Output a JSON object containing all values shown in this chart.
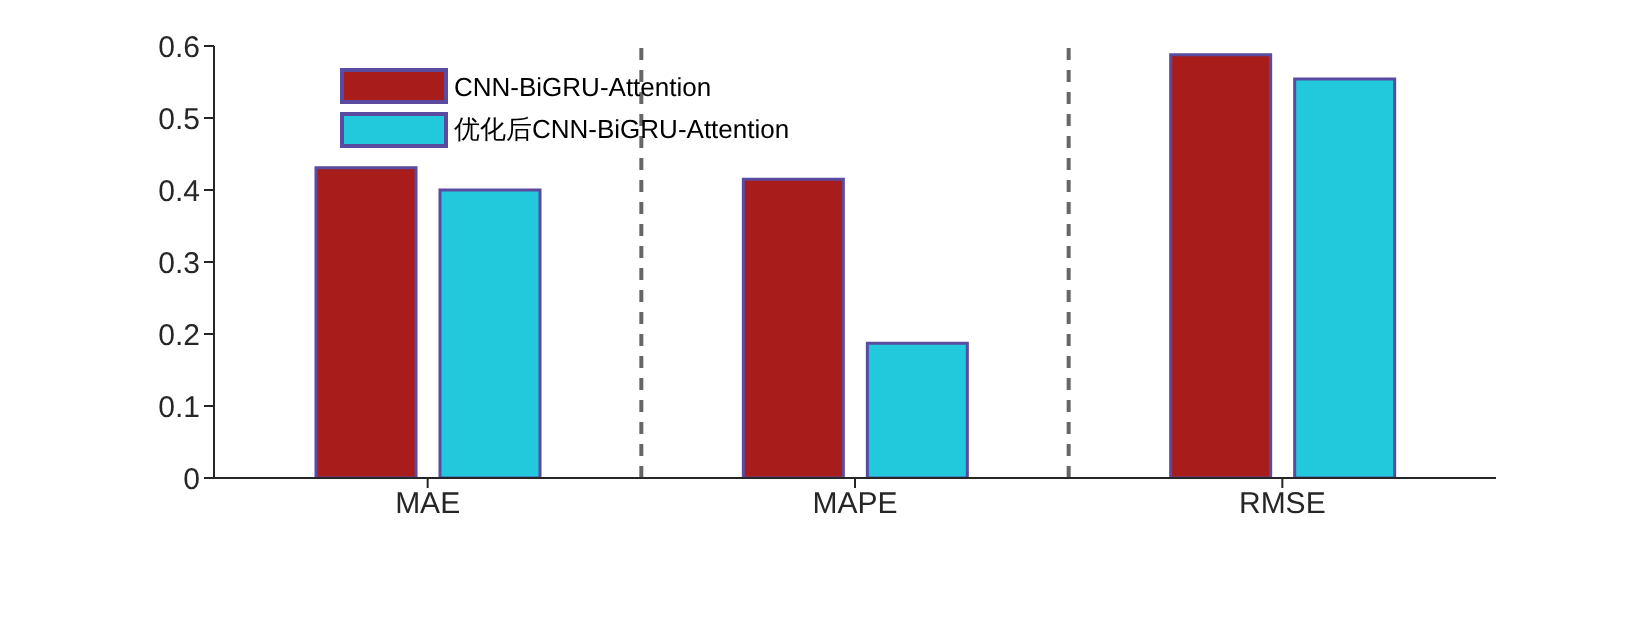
{
  "chart_data": {
    "type": "bar",
    "categories": [
      "MAE",
      "MAPE",
      "RMSE"
    ],
    "series": [
      {
        "name": "CNN-BiGRU-Attention",
        "color": "#a81c1c",
        "values": [
          0.431,
          0.415,
          0.588
        ]
      },
      {
        "name": "优化后CNN-BiGRU-Attention",
        "color": "#22c8dc",
        "values": [
          0.4,
          0.187,
          0.554
        ]
      }
    ],
    "ylim": [
      0,
      0.6
    ],
    "yticks": [
      0,
      0.1,
      0.2,
      0.3,
      0.4,
      0.5,
      0.6
    ],
    "grid": false,
    "legend": "top left"
  }
}
